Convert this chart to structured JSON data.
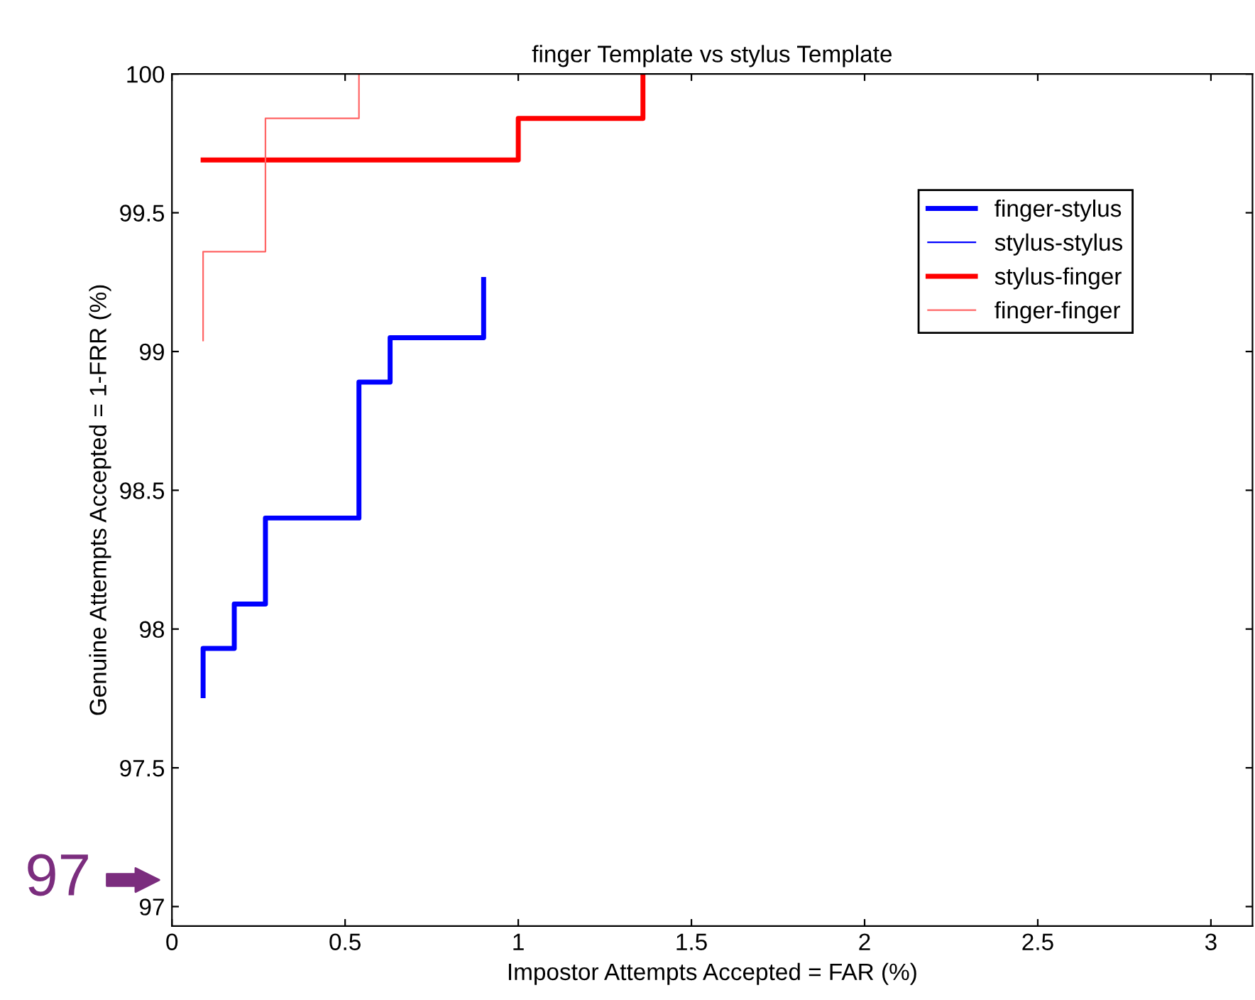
{
  "chart_data": {
    "type": "line",
    "title": "finger Template vs stylus Template",
    "xlabel": "Impostor Attempts Accepted = FAR (%)",
    "ylabel": "Genuine Attempts Accepted = 1-FRR (%)",
    "series": [
      {
        "name": "finger-stylus",
        "color": "#0000ff",
        "x": [
          0.09,
          0.09,
          0.18,
          0.18,
          0.27,
          0.27,
          0.54,
          0.54,
          0.63,
          0.63,
          0.9,
          0.9
        ],
        "values": [
          97.76,
          97.93,
          97.93,
          98.09,
          98.09,
          98.4,
          98.4,
          98.89,
          98.89,
          99.05,
          99.05,
          99.26
        ]
      },
      {
        "name": "stylus-stylus",
        "color": "#0000ff"
      },
      {
        "name": "stylus-finger",
        "color": "#ff0000",
        "x": [
          0.09,
          1.0,
          1.0,
          1.36,
          1.36
        ],
        "values": [
          99.69,
          99.69,
          99.84,
          99.84,
          100
        ]
      },
      {
        "name": "finger-finger",
        "color": "#ff6666",
        "x": [
          0.09,
          0.09,
          0.27,
          0.27,
          0.54,
          0.54
        ],
        "values": [
          99.04,
          99.36,
          99.36,
          99.84,
          99.84,
          100
        ]
      }
    ],
    "xlim": [
      0,
      3.12
    ],
    "ylim": [
      96.93,
      100
    ],
    "xticks": [
      0,
      0.5,
      1,
      1.5,
      2,
      2.5,
      3
    ],
    "yticks": [
      97,
      97.5,
      98,
      98.5,
      99,
      99.5,
      100
    ],
    "grid": false,
    "legend": "right",
    "annotations": [
      "97"
    ]
  }
}
